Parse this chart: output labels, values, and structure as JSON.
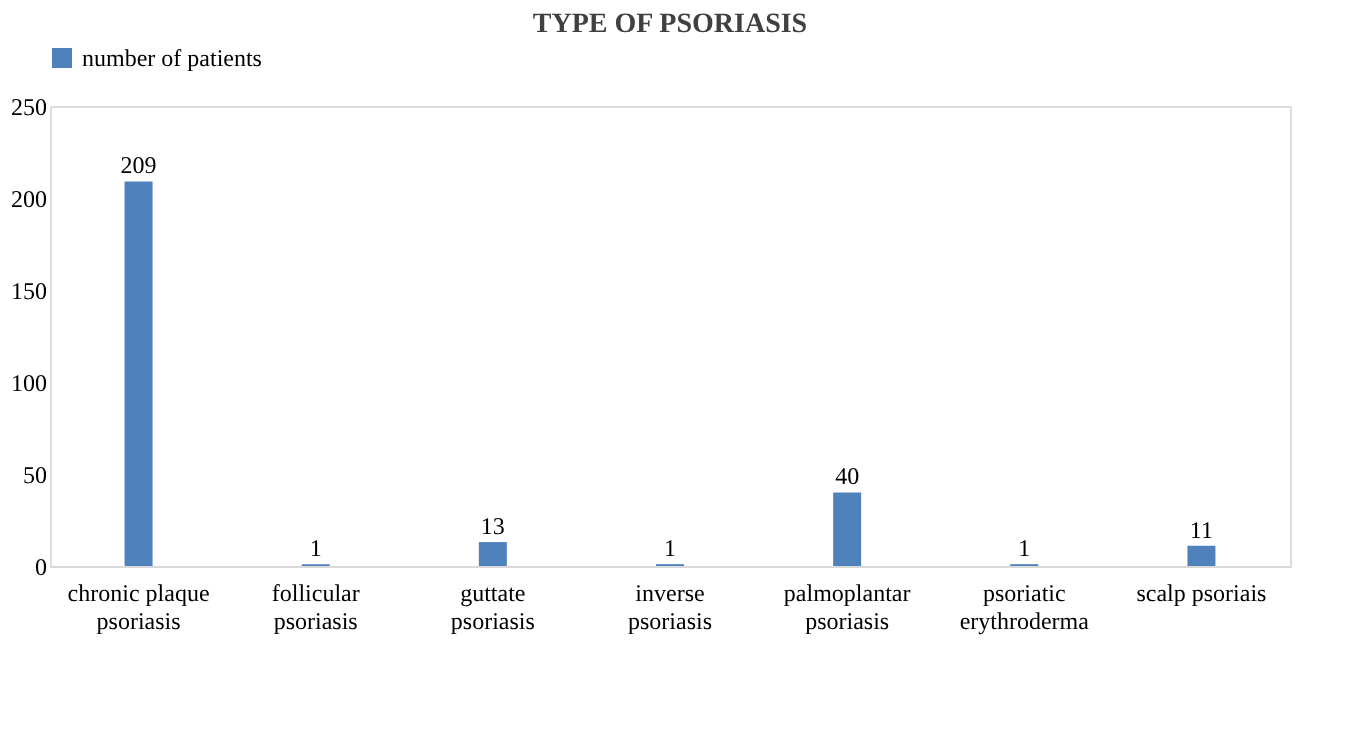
{
  "chart_data": {
    "type": "bar",
    "title": "TYPE OF PSORIASIS",
    "categories": [
      "chronic plaque psoriasis",
      "follicular psoriasis",
      "guttate psoriasis",
      "inverse psoriasis",
      "palmoplantar psoriasis",
      "psoriatic erythroderma",
      "scalp psoriais"
    ],
    "series": [
      {
        "name": "number of patients",
        "color": "#4f81bd",
        "values": [
          209,
          1,
          13,
          1,
          40,
          1,
          11
        ]
      }
    ],
    "ylim": [
      0,
      250
    ],
    "yticks": [
      0,
      50,
      100,
      150,
      200,
      250
    ],
    "grid": false,
    "legend": "top",
    "data_labels": true
  }
}
